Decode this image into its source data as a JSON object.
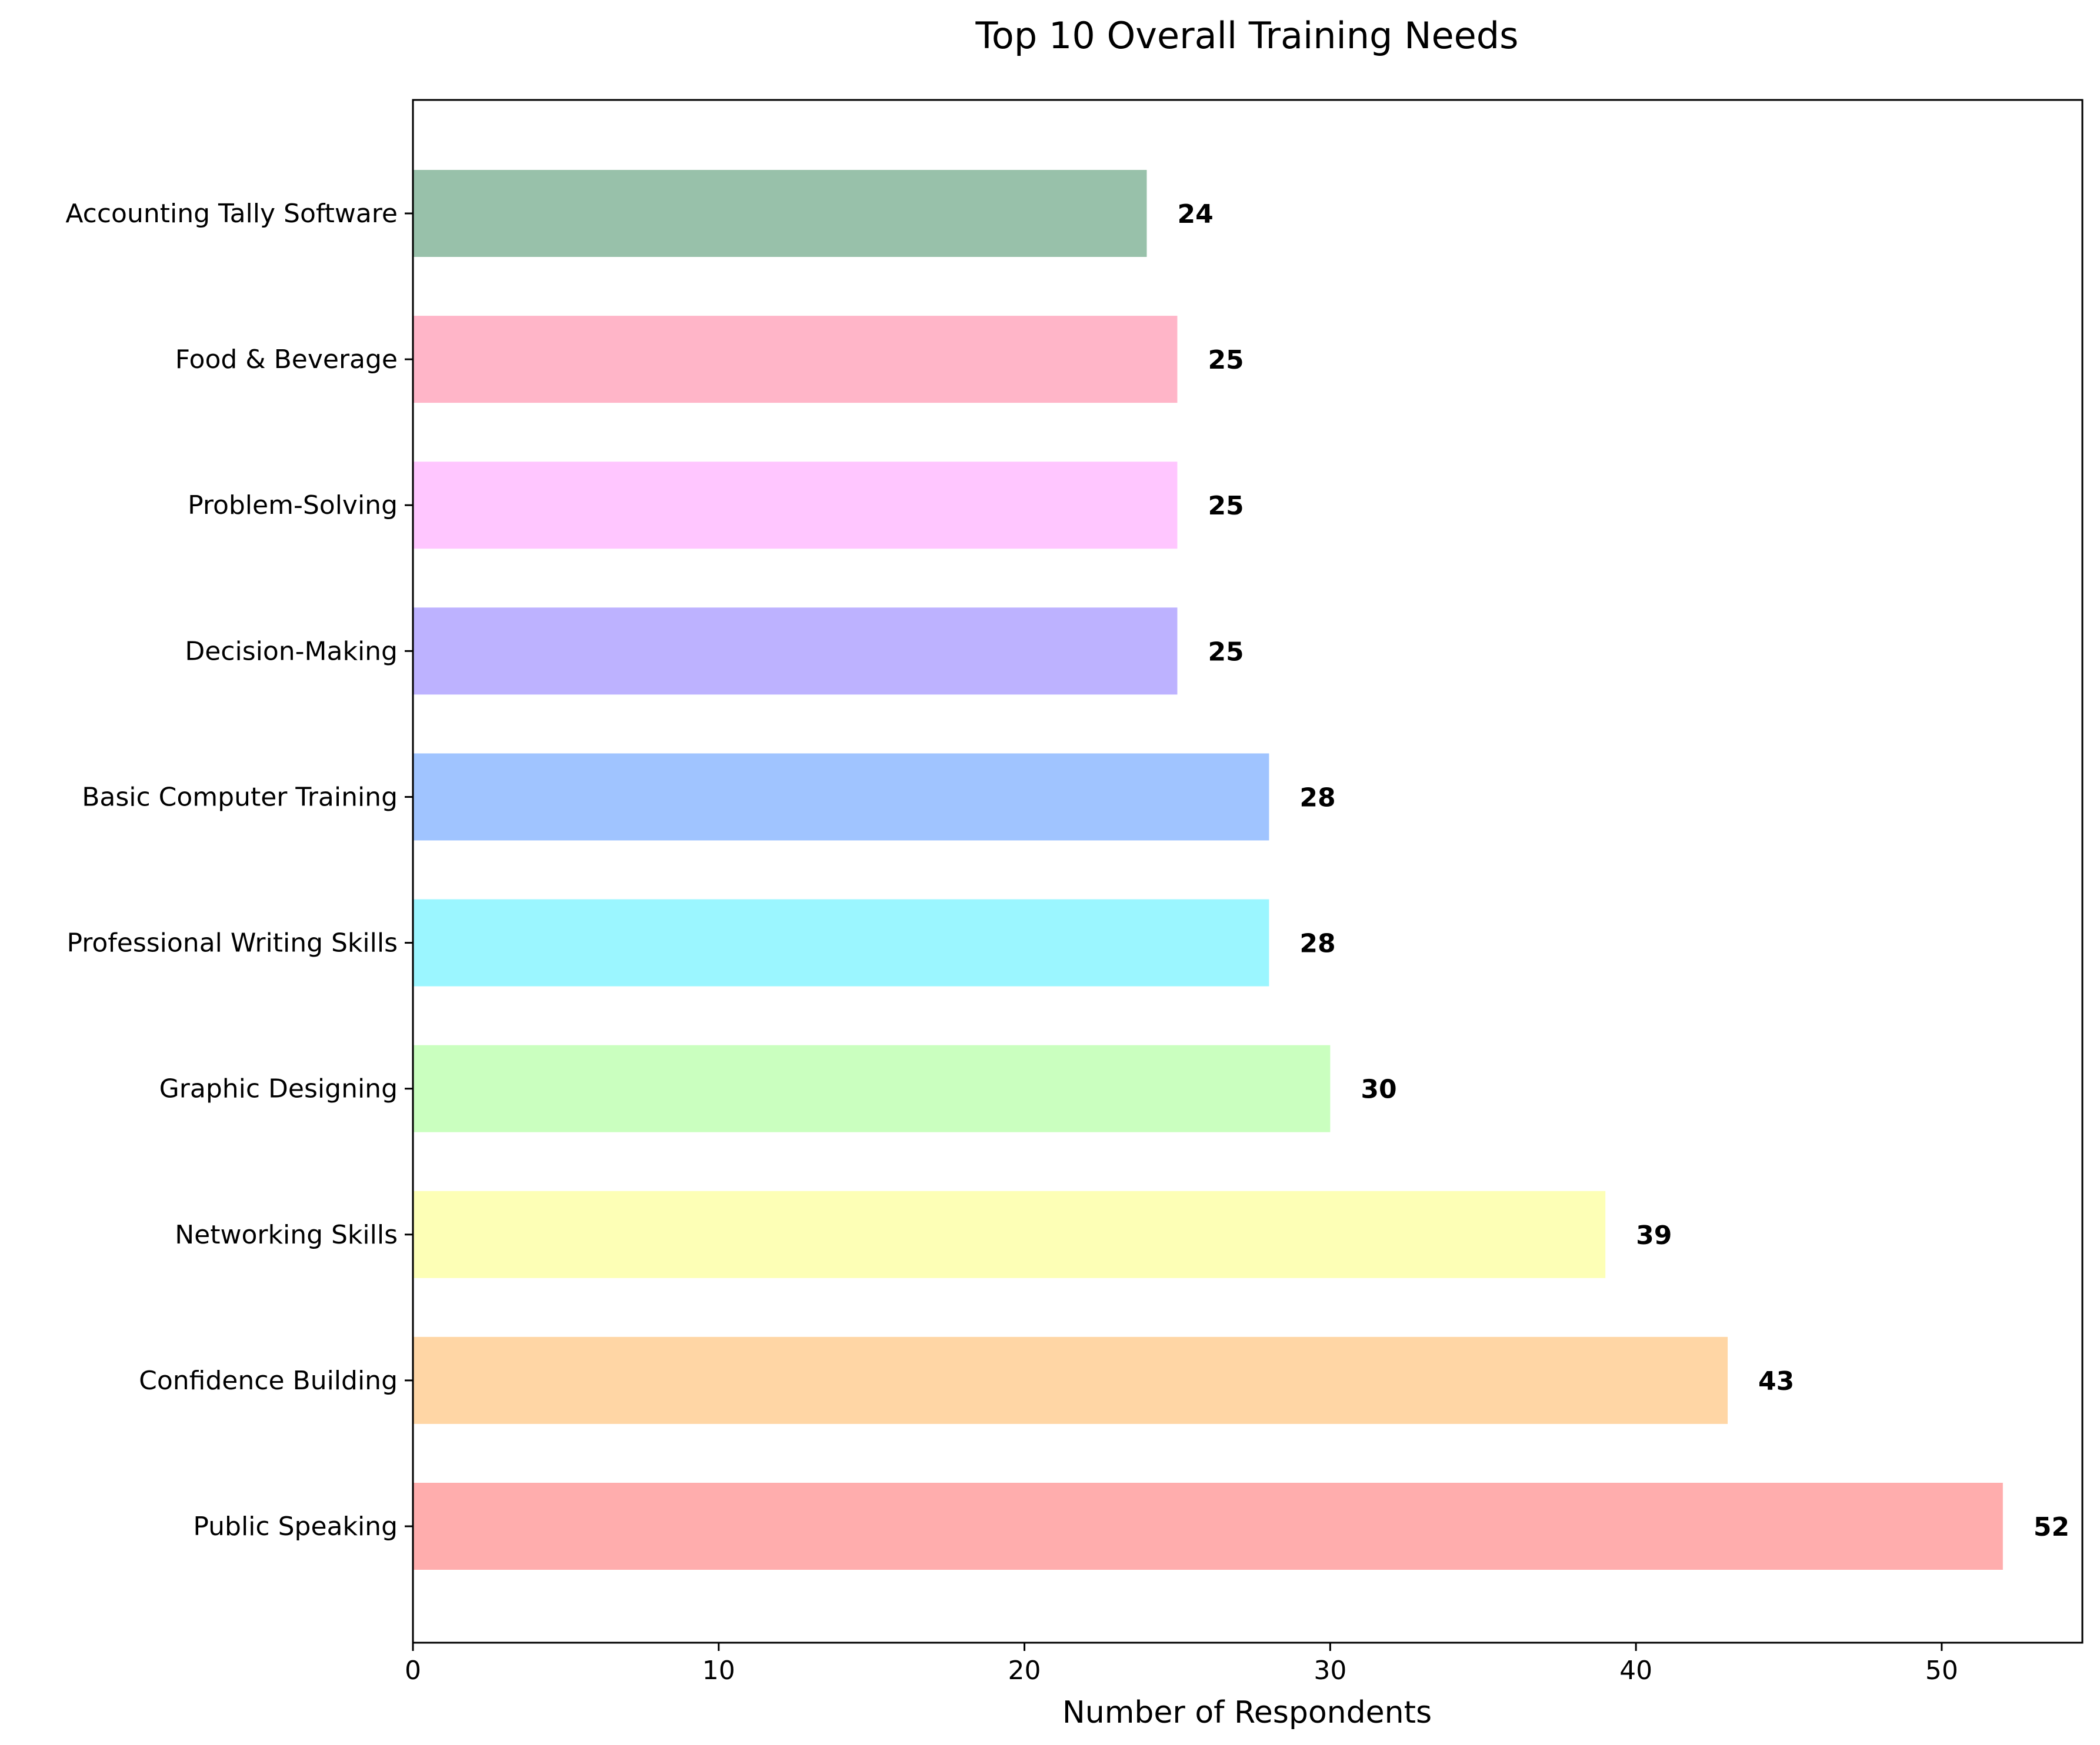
{
  "chart_data": {
    "type": "bar",
    "orientation": "horizontal",
    "title": "Top 10 Overall Training Needs",
    "xlabel": "Number of Respondents",
    "ylabel": "",
    "xlim": [
      0,
      54.6
    ],
    "x_ticks": [
      0,
      10,
      20,
      30,
      40,
      50
    ],
    "grid": false,
    "categories": [
      "Public Speaking",
      "Confidence Building",
      "Networking Skills",
      "Graphic Designing",
      "Professional Writing Skills",
      "Basic Computer Training",
      "Decision-Making",
      "Problem-Solving",
      "Food & Beverage",
      "Accounting Tally Software"
    ],
    "values": [
      52,
      43,
      39,
      30,
      28,
      28,
      25,
      25,
      25,
      24
    ],
    "colors": [
      "#FFADAD",
      "#FFD6A5",
      "#FDFFB6",
      "#CAFFBF",
      "#9BF6FF",
      "#A0C4FF",
      "#BDB2FF",
      "#FFC6FF",
      "#FFB5C8",
      "#98C1AA"
    ]
  }
}
